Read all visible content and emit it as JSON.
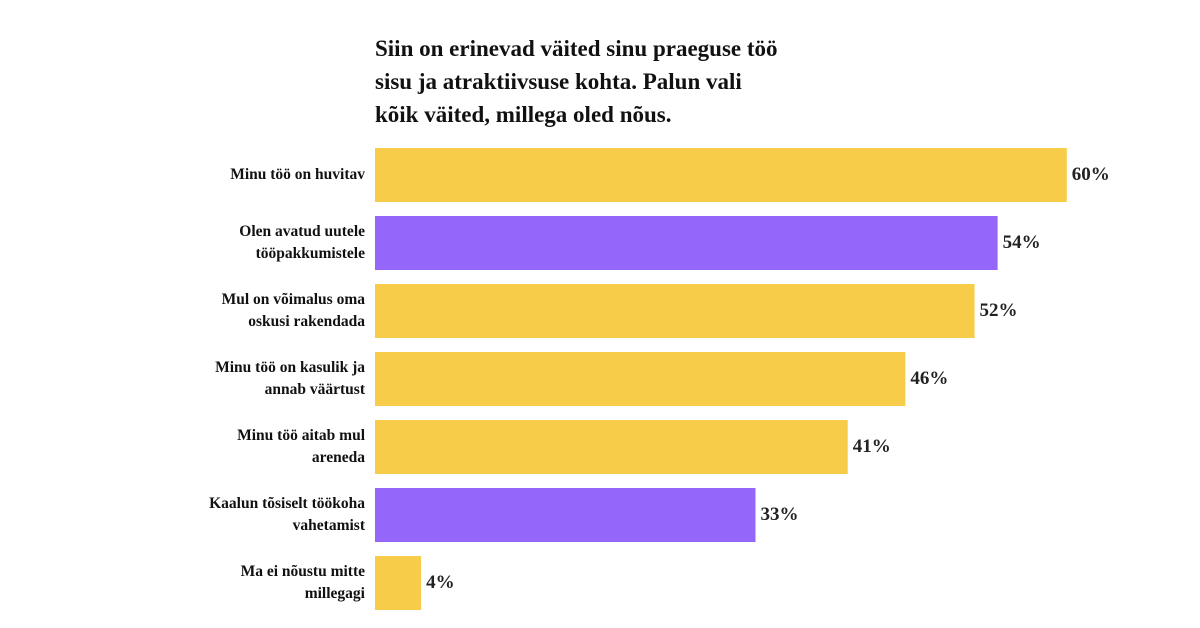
{
  "chart_data": {
    "type": "bar",
    "orientation": "horizontal",
    "title": "Siin on erinevad väited sinu praeguse töö sisu ja atraktiivsuse kohta. Palun vali kõik väited, millega oled nõus.",
    "categories": [
      "Minu töö on huvitav",
      "Olen avatud uutele tööpakkumistele",
      "Mul on võimalus oma oskusi rakendada",
      "Minu töö on kasulik ja annab väärtust",
      "Minu töö aitab mul areneda",
      "Kaalun tõsiselt töökoha vahetamist",
      "Ma ei nõustu mitte millegagi"
    ],
    "values": [
      60,
      54,
      52,
      46,
      41,
      33,
      4
    ],
    "value_labels": [
      "60%",
      "54%",
      "52%",
      "46%",
      "41%",
      "33%",
      "4%"
    ],
    "colors": [
      "#f7cc48",
      "#9566fa",
      "#f7cc48",
      "#f7cc48",
      "#f7cc48",
      "#9566fa",
      "#f7cc48"
    ]
  }
}
